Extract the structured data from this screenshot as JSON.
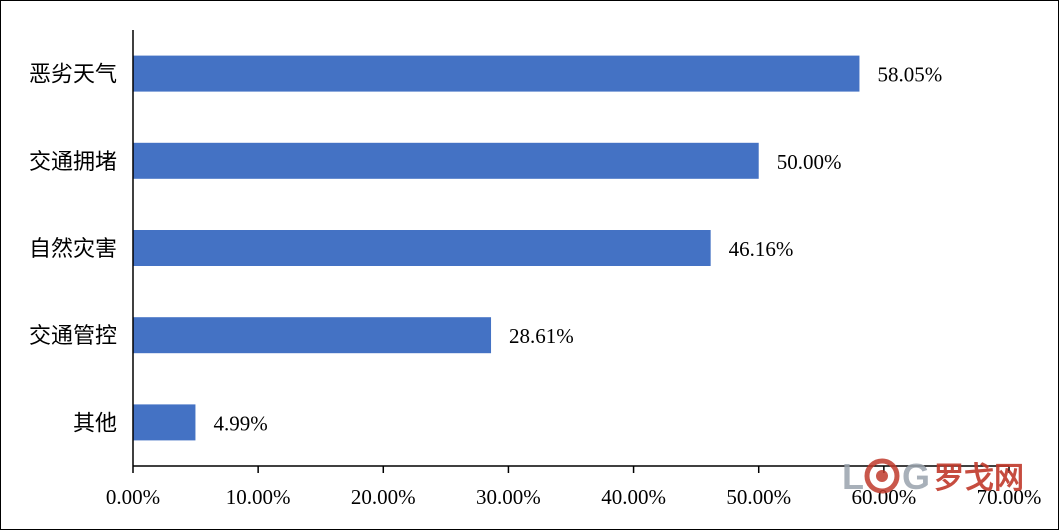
{
  "chart_data": {
    "type": "bar",
    "orientation": "horizontal",
    "categories": [
      "恶劣天气",
      "交通拥堵",
      "自然灾害",
      "交通管控",
      "其他"
    ],
    "values": [
      58.05,
      50.0,
      46.16,
      28.61,
      4.99
    ],
    "value_labels": [
      "58.05%",
      "50.00%",
      "46.16%",
      "28.61%",
      "4.99%"
    ],
    "x_ticks": [
      "0.00%",
      "10.00%",
      "20.00%",
      "30.00%",
      "40.00%",
      "50.00%",
      "60.00%",
      "70.00%"
    ],
    "xlim": [
      0,
      70
    ],
    "grid": false,
    "legend": "none",
    "bar_color": "#4472C4"
  },
  "watermark": {
    "letters": [
      "L",
      "G"
    ],
    "text": "罗戈网",
    "color": "#c0392b"
  }
}
